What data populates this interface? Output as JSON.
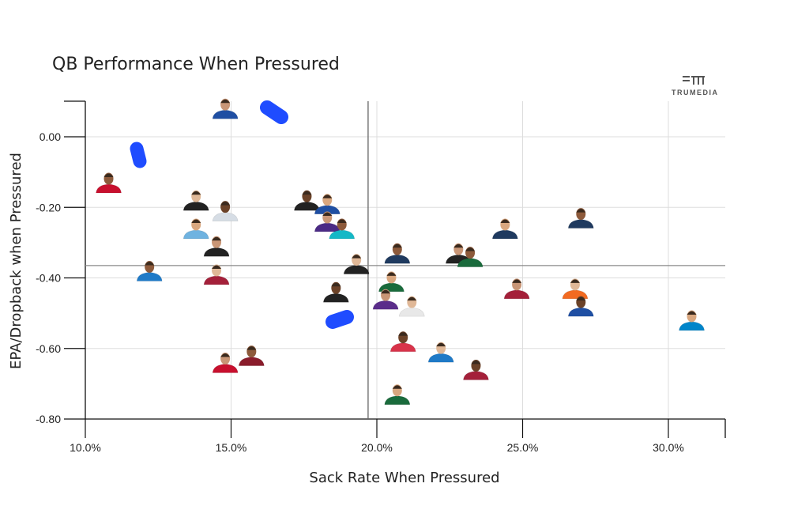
{
  "chart_data": {
    "type": "scatter",
    "title": "QB Performance When Pressured",
    "xlabel": "Sack Rate When Pressured",
    "ylabel": "EPA/Dropback when Pressured",
    "xlim": [
      0.1,
      0.32
    ],
    "ylim": [
      -0.8,
      0.1
    ],
    "x_ticks": [
      0.1,
      0.15,
      0.2,
      0.25,
      0.3
    ],
    "x_tick_labels": [
      "10.0%",
      "15.0%",
      "20.0%",
      "25.0%",
      "30.0%"
    ],
    "y_ticks": [
      0.0,
      -0.2,
      -0.4,
      -0.6,
      -0.8
    ],
    "y_tick_labels": [
      "0.00",
      "-0.20",
      "-0.40",
      "-0.60",
      "-0.80"
    ],
    "grid": true,
    "reference_lines": {
      "x": 0.197,
      "y": -0.365
    },
    "brand": "TRUMEDIA",
    "points": [
      {
        "x": 0.148,
        "y": 0.06,
        "color": "#1f4fa3"
      },
      {
        "x": 0.108,
        "y": -0.15,
        "color": "#c8102e"
      },
      {
        "x": 0.138,
        "y": -0.2,
        "color": "#222222"
      },
      {
        "x": 0.148,
        "y": -0.23,
        "color": "#d6dde5"
      },
      {
        "x": 0.138,
        "y": -0.28,
        "color": "#6fb3e0"
      },
      {
        "x": 0.145,
        "y": -0.33,
        "color": "#222222"
      },
      {
        "x": 0.122,
        "y": -0.4,
        "color": "#1f7ac7"
      },
      {
        "x": 0.145,
        "y": -0.41,
        "color": "#a4203a"
      },
      {
        "x": 0.176,
        "y": -0.2,
        "color": "#222222"
      },
      {
        "x": 0.183,
        "y": -0.21,
        "color": "#1f4fa3"
      },
      {
        "x": 0.183,
        "y": -0.26,
        "color": "#4b2a85"
      },
      {
        "x": 0.188,
        "y": -0.28,
        "color": "#14b8c6"
      },
      {
        "x": 0.193,
        "y": -0.38,
        "color": "#222222"
      },
      {
        "x": 0.186,
        "y": -0.46,
        "color": "#222222"
      },
      {
        "x": 0.205,
        "y": -0.43,
        "color": "#1a6b3c"
      },
      {
        "x": 0.203,
        "y": -0.48,
        "color": "#5a2d8a"
      },
      {
        "x": 0.207,
        "y": -0.35,
        "color": "#1f3a5f"
      },
      {
        "x": 0.212,
        "y": -0.5,
        "color": "#e8e8e8"
      },
      {
        "x": 0.209,
        "y": -0.6,
        "color": "#d8334a"
      },
      {
        "x": 0.207,
        "y": -0.75,
        "color": "#1a6b3c"
      },
      {
        "x": 0.228,
        "y": -0.35,
        "color": "#222222"
      },
      {
        "x": 0.232,
        "y": -0.36,
        "color": "#1a6b3c"
      },
      {
        "x": 0.222,
        "y": -0.63,
        "color": "#1f7ac7"
      },
      {
        "x": 0.234,
        "y": -0.68,
        "color": "#a4203a"
      },
      {
        "x": 0.244,
        "y": -0.28,
        "color": "#1f3a5f"
      },
      {
        "x": 0.248,
        "y": -0.45,
        "color": "#a4203a"
      },
      {
        "x": 0.27,
        "y": -0.25,
        "color": "#1f3a5f"
      },
      {
        "x": 0.268,
        "y": -0.45,
        "color": "#f26a21"
      },
      {
        "x": 0.27,
        "y": -0.5,
        "color": "#1f4fa3"
      },
      {
        "x": 0.308,
        "y": -0.54,
        "color": "#0085ca"
      },
      {
        "x": 0.148,
        "y": -0.66,
        "color": "#c8102e"
      },
      {
        "x": 0.157,
        "y": -0.64,
        "color": "#8a1c2b"
      }
    ]
  }
}
